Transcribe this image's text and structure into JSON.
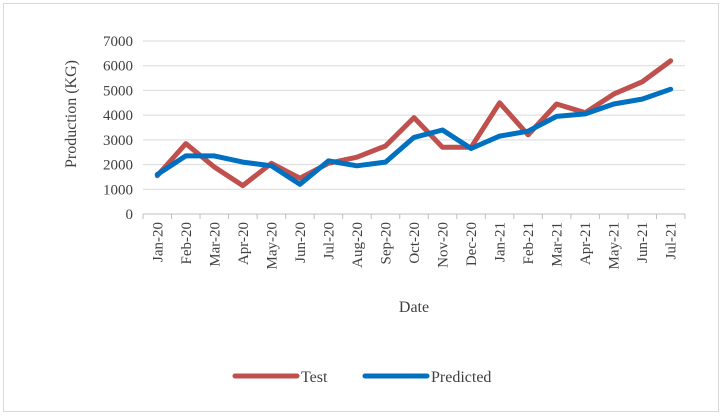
{
  "chart_data": {
    "type": "line",
    "title": "",
    "xlabel": "Date",
    "ylabel": "Production (KG)",
    "ylim": [
      0,
      7000
    ],
    "yticks": [
      0,
      1000,
      2000,
      3000,
      4000,
      5000,
      6000,
      7000
    ],
    "grid": true,
    "legend_position": "bottom",
    "categories": [
      "Jan-20",
      "Feb-20",
      "Mar-20",
      "Apr-20",
      "May-20",
      "Jun-20",
      "Jul-20",
      "Aug-20",
      "Sep-20",
      "Oct-20",
      "Nov-20",
      "Dec-20",
      "Jan-21",
      "Feb-21",
      "Mar-21",
      "Apr-21",
      "May-21",
      "Jun-21",
      "Jul-21"
    ],
    "series": [
      {
        "name": "Test",
        "color": "#c0504d",
        "values": [
          1550,
          2850,
          1900,
          1150,
          2050,
          1450,
          2050,
          2300,
          2750,
          3900,
          2700,
          2700,
          4500,
          3200,
          4450,
          4100,
          4850,
          5350,
          6200
        ]
      },
      {
        "name": "Predicted",
        "color": "#0070c0",
        "values": [
          1600,
          2350,
          2350,
          2100,
          1950,
          1200,
          2150,
          1950,
          2100,
          3100,
          3400,
          2650,
          3150,
          3350,
          3950,
          4050,
          4450,
          4650,
          5050
        ]
      }
    ]
  }
}
